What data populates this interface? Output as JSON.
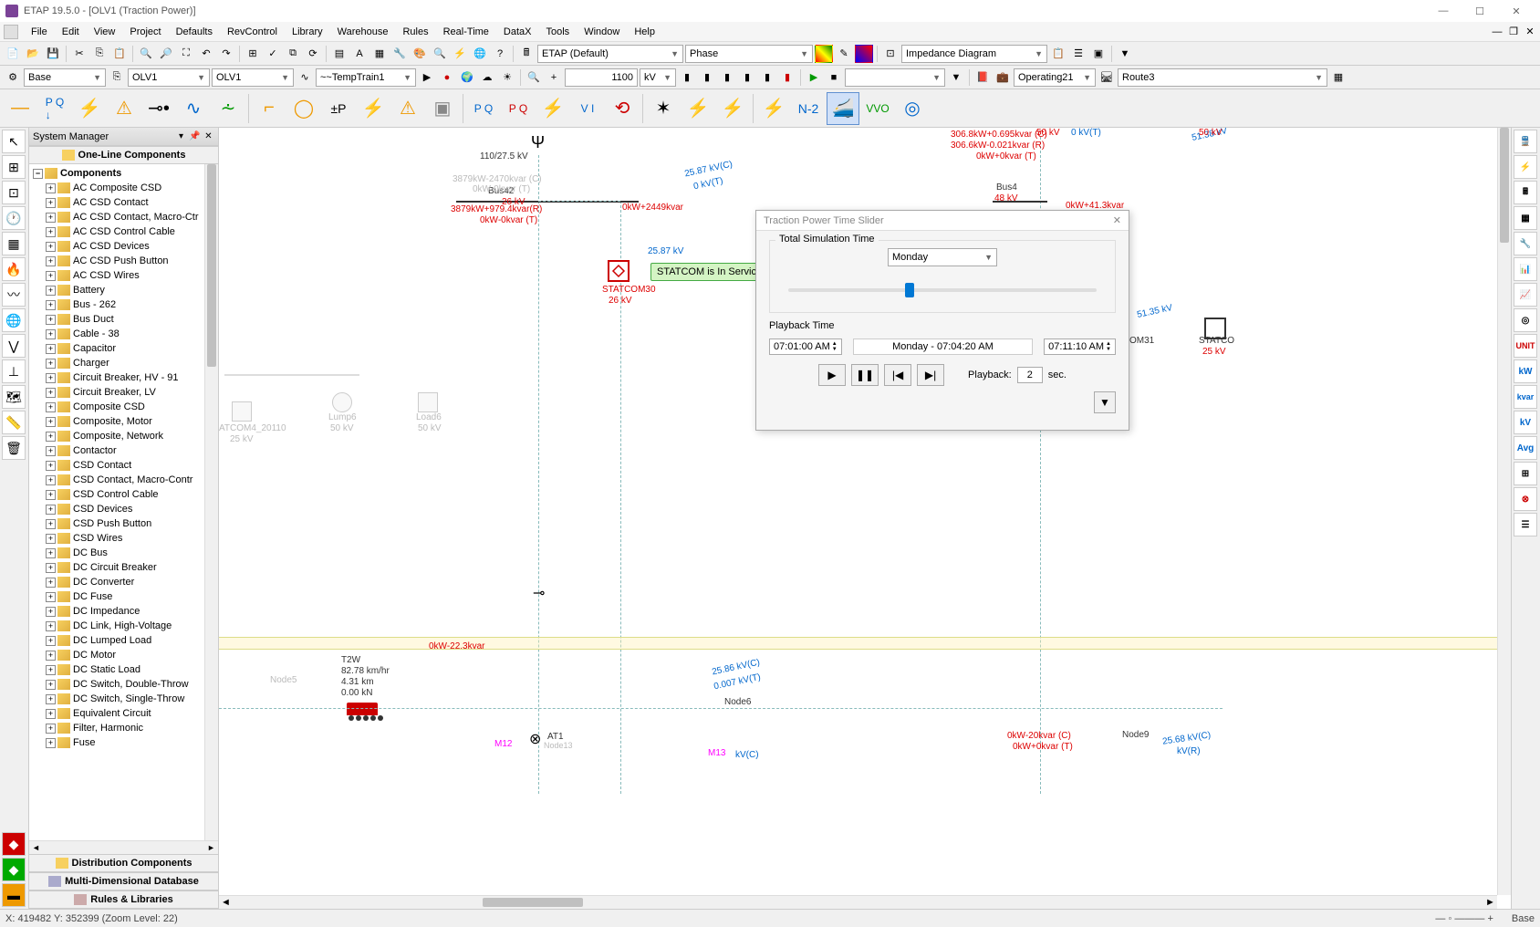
{
  "title": "ETAP 19.5.0 - [OLV1 (Traction Power)]",
  "menu": [
    "File",
    "Edit",
    "View",
    "Project",
    "Defaults",
    "RevControl",
    "Library",
    "Warehouse",
    "Rules",
    "Real-Time",
    "DataX",
    "Tools",
    "Window",
    "Help"
  ],
  "toolbar1": {
    "combo1": "ETAP (Default)",
    "combo2": "Phase",
    "combo3": "Impedance Diagram"
  },
  "toolbar2": {
    "mode": "Base",
    "olv_a": "OLV1",
    "olv_b": "OLV1",
    "temp": "~~TempTrain1",
    "num": "1100",
    "unit": "kV",
    "operating": "Operating21",
    "route": "Route3"
  },
  "bigbar": {
    "n2": "N-2",
    "vvo": "VVO"
  },
  "sysmgr": {
    "title": "System Manager",
    "section1": "One-Line Components",
    "root": "Components",
    "items": [
      "AC Composite CSD",
      "AC CSD Contact",
      "AC CSD Contact, Macro-Ctr",
      "AC CSD Control Cable",
      "AC CSD Devices",
      "AC CSD Push Button",
      "AC CSD Wires",
      "Battery",
      "Bus - 262",
      "Bus Duct",
      "Cable - 38",
      "Capacitor",
      "Charger",
      "Circuit Breaker, HV - 91",
      "Circuit Breaker, LV",
      "Composite CSD",
      "Composite, Motor",
      "Composite, Network",
      "Contactor",
      "CSD Contact",
      "CSD Contact, Macro-Contr",
      "CSD Control Cable",
      "CSD Devices",
      "CSD Push Button",
      "CSD Wires",
      "DC Bus",
      "DC Circuit Breaker",
      "DC Converter",
      "DC Fuse",
      "DC Impedance",
      "DC Link, High-Voltage",
      "DC Lumped Load",
      "DC Motor",
      "DC Static Load",
      "DC Switch, Double-Throw",
      "DC Switch, Single-Throw",
      "Equivalent Circuit",
      "Filter, Harmonic",
      "Fuse"
    ],
    "section2": "Distribution Components",
    "section3": "Multi-Dimensional Database",
    "section4": "Rules & Libraries"
  },
  "dialog": {
    "title": "Traction Power Time Slider",
    "group1": "Total Simulation Time",
    "day": "Monday",
    "group2": "Playback Time",
    "start": "07:01:00 AM",
    "mid": "Monday  -  07:04:20 AM",
    "end": "07:11:10 AM",
    "playback_label": "Playback:",
    "playback_val": "2",
    "playback_unit": "sec."
  },
  "canvas": {
    "transformer": "110/27.5 kV",
    "bus42": "Bus42",
    "bus42_v": "26 kV",
    "bus42_flow1": "3879kW+979.4kvar(R)",
    "bus42_flow2": "0kW-0kvar (T)",
    "bus42_ghost": "3879kW-2470kvar (C)",
    "bus42_ghost2": "0kW-0kvar (T)",
    "branch_flow": "0kW+2449kvar",
    "branch_kv": "25.87 kV",
    "branch_kv2": "25.87 kV(C)",
    "branch_kv3": "0 kV(T)",
    "statcom30": "STATCOM30",
    "statcom30_v": "26 kV",
    "tooltip": "STATCOM is In Service",
    "bus4": "Bus4",
    "bus4_v": "48 kV",
    "bus4_flow": "0kW+41.3kvar",
    "topright1": "306.8kW+0.695kvar (C)",
    "topright2": "306.6kW-0.021kvar (R)",
    "topright3": "0kW+0kvar (T)",
    "topright_kv": "50 kV",
    "topright_0kv": "0 kV(T)",
    "topright_51": "51.38 kV",
    "far_right_kv": "50 kV",
    "right_51": "51.35 kV",
    "statcom31": "OM31",
    "statco_right": "STATCO",
    "statco_right_v": "25 kV",
    "statcom4": "ATCOM4_20110",
    "statcom4_v": "25 kV",
    "lump6": "Lump6",
    "lump6_v": "50 kV",
    "load6": "Load6",
    "load6_v": "50 kV",
    "mid_flow": "0kW-22.3kvar",
    "t2w": "T2W",
    "t2w_speed": "82.78 km/hr",
    "t2w_dist": "4.31 km",
    "t2w_force": "0.00 kN",
    "node5": "Node5",
    "node6": "Node6",
    "node6_kv1": "25.86 kV(C)",
    "node6_kv2": "0.007 kV(T)",
    "at1": "AT1",
    "m12": "M12",
    "m13": "M13",
    "node13_lbl": "Node13",
    "node13_kv": "kV(C)",
    "bot_right1": "0kW-20kvar (C)",
    "bot_right2": "0kW+0kvar (T)",
    "node9": "Node9",
    "node9_kv1": "25.68 kV(C)",
    "node9_kv2": "kV(R)"
  },
  "status": {
    "coords": "X: 419482    Y: 352399 (Zoom Level: 22)",
    "base": "Base"
  },
  "right_labels": [
    "UNIT",
    "kW",
    "kvar",
    "kV",
    "Avg"
  ],
  "colors": {
    "accent": "#0078d4",
    "red": "#d00000",
    "green_bg": "#d4f4c4",
    "blue_text": "#0066cc"
  }
}
